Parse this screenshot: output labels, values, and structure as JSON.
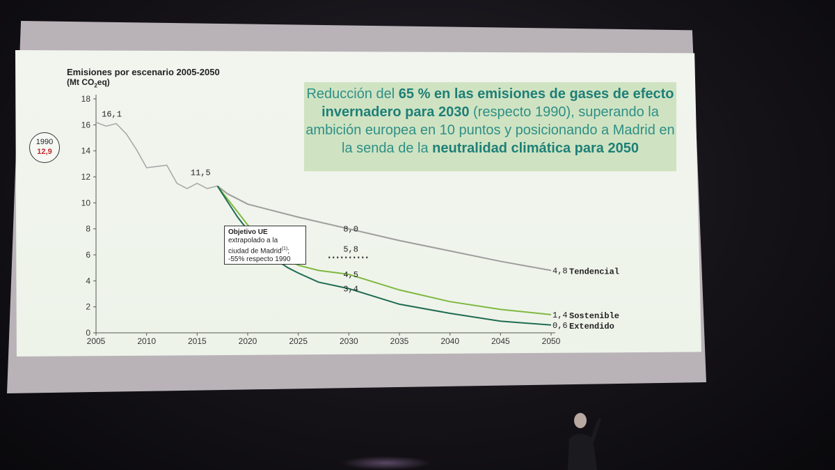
{
  "chart_data": {
    "type": "line",
    "title": "Emisiones por escenario 2005-2050",
    "ylabel_prefix": "(Mt CO",
    "ylabel_sub": "2",
    "ylabel_suffix": "eq)",
    "xlim": [
      2005,
      2050
    ],
    "ylim": [
      0,
      18
    ],
    "x_ticks": [
      2005,
      2010,
      2015,
      2020,
      2025,
      2030,
      2035,
      2040,
      2045,
      2050
    ],
    "y_ticks": [
      0,
      2,
      4,
      6,
      8,
      10,
      12,
      14,
      16,
      18
    ],
    "grid": false,
    "historical": {
      "color": "#a9a9a9",
      "points": [
        [
          2005,
          16.2
        ],
        [
          2006,
          15.9
        ],
        [
          2007,
          16.1
        ],
        [
          2008,
          15.3
        ],
        [
          2009,
          14.1
        ],
        [
          2010,
          12.7
        ],
        [
          2011,
          12.8
        ],
        [
          2012,
          12.9
        ],
        [
          2013,
          11.5
        ],
        [
          2014,
          11.1
        ],
        [
          2015,
          11.5
        ],
        [
          2016,
          11.1
        ],
        [
          2017,
          11.3
        ]
      ]
    },
    "series": [
      {
        "name": "Tendencial",
        "color": "#9d9d9d",
        "points": [
          [
            2017,
            11.3
          ],
          [
            2018,
            10.7
          ],
          [
            2019,
            10.3
          ],
          [
            2020,
            9.9
          ],
          [
            2022,
            9.5
          ],
          [
            2025,
            8.9
          ],
          [
            2030,
            8.0
          ],
          [
            2035,
            7.1
          ],
          [
            2040,
            6.3
          ],
          [
            2045,
            5.5
          ],
          [
            2050,
            4.8
          ]
        ]
      },
      {
        "name": "Sostenible",
        "color": "#7fb83f",
        "points": [
          [
            2017,
            11.3
          ],
          [
            2018,
            10.3
          ],
          [
            2019,
            9.3
          ],
          [
            2020,
            8.3
          ],
          [
            2021,
            7.6
          ],
          [
            2022,
            6.7
          ],
          [
            2023,
            6.1
          ],
          [
            2024,
            5.6
          ],
          [
            2025,
            5.2
          ],
          [
            2027,
            4.8
          ],
          [
            2030,
            4.5
          ],
          [
            2035,
            3.3
          ],
          [
            2040,
            2.4
          ],
          [
            2045,
            1.8
          ],
          [
            2050,
            1.4
          ]
        ]
      },
      {
        "name": "Extendido",
        "color": "#1e6b52",
        "points": [
          [
            2017,
            11.3
          ],
          [
            2018,
            10.1
          ],
          [
            2019,
            8.9
          ],
          [
            2020,
            7.9
          ],
          [
            2021,
            7.1
          ],
          [
            2022,
            6.3
          ],
          [
            2023,
            5.5
          ],
          [
            2024,
            5.0
          ],
          [
            2025,
            4.6
          ],
          [
            2027,
            3.9
          ],
          [
            2030,
            3.4
          ],
          [
            2035,
            2.2
          ],
          [
            2040,
            1.5
          ],
          [
            2045,
            0.9
          ],
          [
            2050,
            0.6
          ]
        ]
      }
    ],
    "value_labels": [
      {
        "x": 2006,
        "y": 16.1,
        "text": "16,1"
      },
      {
        "x": 2015,
        "y": 11.5,
        "text": "11,5"
      },
      {
        "x": 2030,
        "y": 8.0,
        "text": "8,0"
      },
      {
        "x": 2030,
        "y": 5.8,
        "text": "5,8"
      },
      {
        "x": 2030,
        "y": 4.5,
        "text": "4,5"
      },
      {
        "x": 2030,
        "y": 3.4,
        "text": "3,4"
      },
      {
        "x": 2050,
        "y": 4.8,
        "text": "4,8"
      },
      {
        "x": 2050,
        "y": 1.4,
        "text": "1,4"
      },
      {
        "x": 2050,
        "y": 0.6,
        "text": "0,6"
      }
    ],
    "eu_target": {
      "x_start": 2028,
      "x_end": 2032,
      "y": 5.8
    },
    "baseline_1990": {
      "year": "1990",
      "value": "12,9",
      "value_color": "#c0272d"
    }
  },
  "callout": {
    "part1": "Reducción del ",
    "bold1": "65 % en las emisiones de gases de efecto invernadero para 2030",
    "part2": " (respecto 1990), superando la ambición europea en 10 puntos y posicionando a Madrid en la senda de la ",
    "bold2": "neutralidad climática para 2050"
  },
  "annotation": {
    "line1": "Objetivo UE",
    "line2": "extrapolado a la",
    "line3": "ciudad de Madrid",
    "sup": "(1)",
    "line3_end": ";",
    "line4": "-55% respecto 1990"
  }
}
